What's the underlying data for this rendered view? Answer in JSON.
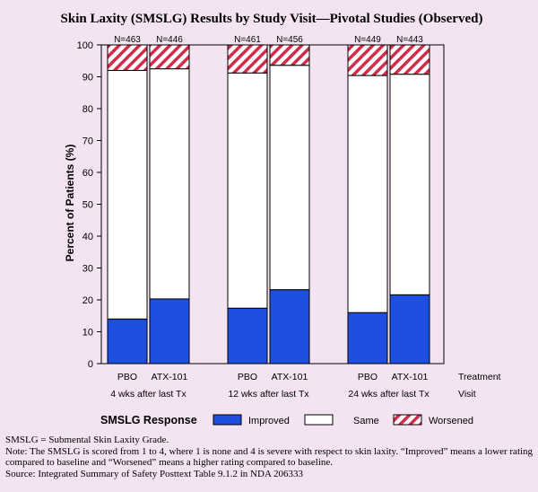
{
  "chart_data": {
    "type": "bar",
    "stacked": true,
    "title": "Skin Laxity (SMSLG) Results by Study Visit—Pivotal Studies (Observed)",
    "ylabel": "Percent of Patients (%)",
    "ylim": [
      0,
      100
    ],
    "yticks": [
      0,
      10,
      20,
      30,
      40,
      50,
      60,
      70,
      80,
      90,
      100
    ],
    "grid": false,
    "group_axis_label": "Visit",
    "category_axis_label": "Treatment",
    "groups": [
      {
        "label": "4 wks after last Tx",
        "bars": [
          {
            "treatment": "PBO",
            "n": "N=463",
            "improved": 14,
            "same": 78,
            "worsened": 8
          },
          {
            "treatment": "ATX-101",
            "n": "N=446",
            "improved": 20.3,
            "same": 72.2,
            "worsened": 7.5
          }
        ]
      },
      {
        "label": "12 wks after last Tx",
        "bars": [
          {
            "treatment": "PBO",
            "n": "N=461",
            "improved": 17.4,
            "same": 73.8,
            "worsened": 8.8
          },
          {
            "treatment": "ATX-101",
            "n": "N=456",
            "improved": 23.2,
            "same": 70.4,
            "worsened": 6.4
          }
        ]
      },
      {
        "label": "24 wks after last Tx",
        "bars": [
          {
            "treatment": "PBO",
            "n": "N=449",
            "improved": 16,
            "same": 74.4,
            "worsened": 9.6
          },
          {
            "treatment": "ATX-101",
            "n": "N=443",
            "improved": 21.6,
            "same": 69.2,
            "worsened": 9.2
          }
        ]
      }
    ],
    "legend": {
      "title": "SMSLG Response",
      "placement": "bottom",
      "entries": [
        {
          "name": "Improved",
          "color": "#1f4fe0",
          "pattern": "solid"
        },
        {
          "name": "Same",
          "color": "#ffffff",
          "pattern": "solid"
        },
        {
          "name": "Worsened",
          "color": "#d42a4a",
          "pattern": "hatched"
        }
      ]
    }
  },
  "notes": {
    "line1": "SMSLG = Submental Skin Laxity Grade.",
    "line2": "Note: The SMSLG is scored from 1 to 4, where 1 is none and 4 is severe with respect to skin laxity.  “Improved” means a lower rating compared to baseline and “Worsened” means a higher rating compared to baseline.",
    "line3": "Source: Integrated Summary of Safety Posttext Table 9.1.2 in NDA 206333"
  }
}
